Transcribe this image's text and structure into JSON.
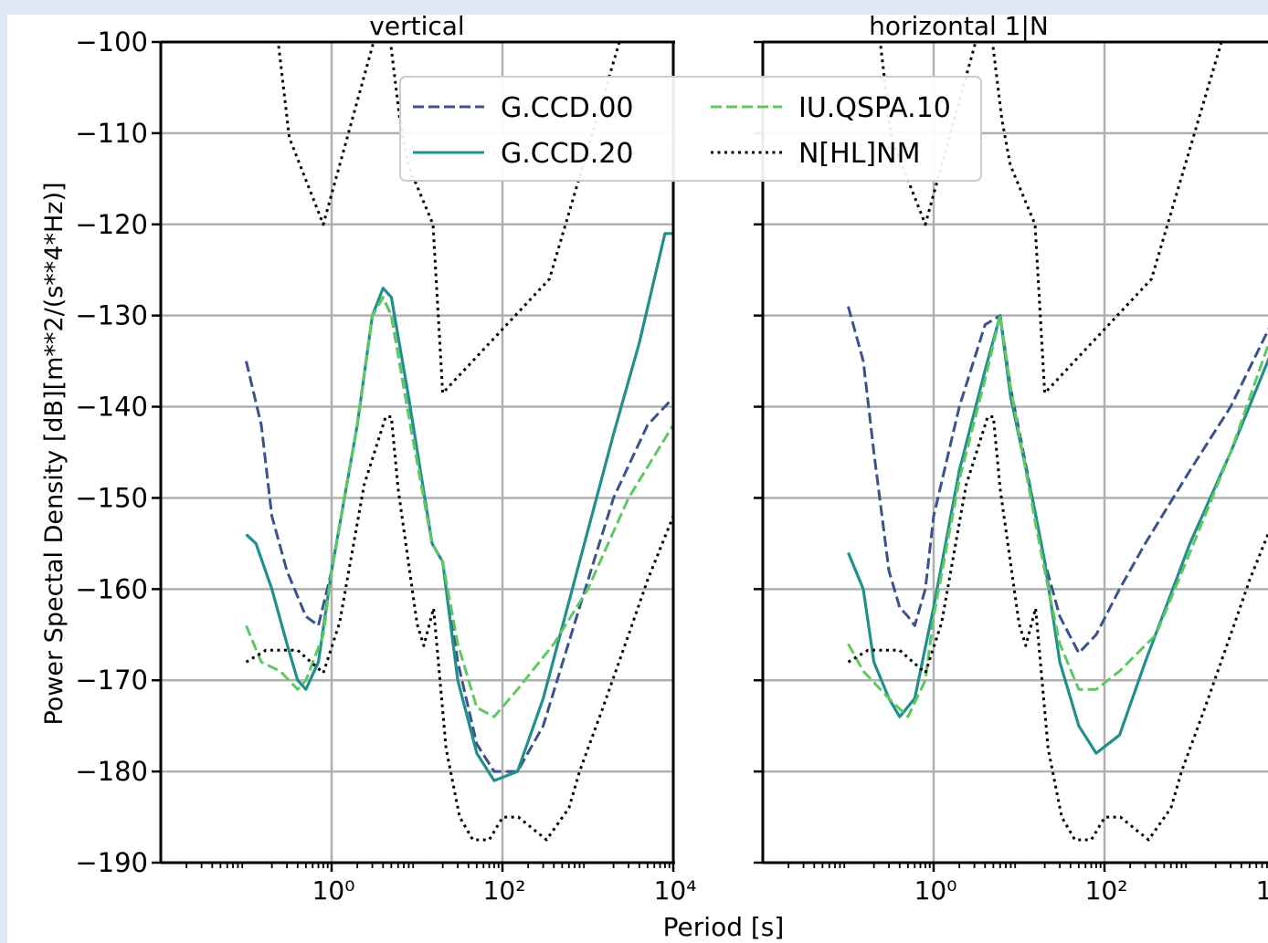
{
  "chart_data": {
    "type": "line",
    "ylabel": "Power Spectal Density [dB][m**2/(s**4*Hz)]",
    "xlabel": "Period [s]",
    "x_scale": "log",
    "xlim": [
      0.01,
      10000
    ],
    "ylim": [
      -190,
      -100
    ],
    "grid": true,
    "legend_location": "top-center",
    "yticks": [
      -100,
      -110,
      -120,
      -130,
      -140,
      -150,
      -160,
      -170,
      -180,
      -190
    ],
    "ytick_labels": [
      "−100",
      "−110",
      "−120",
      "−130",
      "−140",
      "−150",
      "−160",
      "−170",
      "−180",
      "−190"
    ],
    "xticks": [
      1,
      100,
      10000
    ],
    "xtick_labels": [
      "10⁰",
      "10²",
      "10⁴"
    ],
    "legend": [
      "G.CCD.00",
      "G.CCD.20",
      "IU.QSPA.10",
      "N[HL]NM"
    ],
    "colors": {
      "G.CCD.00": "#3b528b",
      "G.CCD.20": "#21908d",
      "IU.QSPA.10": "#5ec962",
      "N[HL]NM": "#000000"
    },
    "panels": [
      {
        "title": "vertical",
        "series": [
          {
            "name": "G.CCD.00",
            "style": "dashed",
            "points": [
              [
                0.1,
                -135
              ],
              [
                0.15,
                -142
              ],
              [
                0.2,
                -152
              ],
              [
                0.3,
                -158
              ],
              [
                0.5,
                -163
              ],
              [
                0.7,
                -164
              ],
              [
                1,
                -158
              ],
              [
                2,
                -142
              ],
              [
                3,
                -130
              ],
              [
                4,
                -128
              ],
              [
                5,
                -130
              ],
              [
                8,
                -141
              ],
              [
                15,
                -155
              ],
              [
                20,
                -157
              ],
              [
                30,
                -168
              ],
              [
                50,
                -177
              ],
              [
                80,
                -180
              ],
              [
                150,
                -180
              ],
              [
                300,
                -175
              ],
              [
                800,
                -162
              ],
              [
                2000,
                -150
              ],
              [
                5000,
                -142
              ],
              [
                10000,
                -139
              ]
            ]
          },
          {
            "name": "G.CCD.20",
            "style": "solid",
            "points": [
              [
                0.1,
                -154
              ],
              [
                0.13,
                -155
              ],
              [
                0.2,
                -160
              ],
              [
                0.3,
                -166
              ],
              [
                0.4,
                -170
              ],
              [
                0.5,
                -171
              ],
              [
                0.7,
                -168
              ],
              [
                1,
                -158
              ],
              [
                2,
                -142
              ],
              [
                3,
                -130
              ],
              [
                4,
                -127
              ],
              [
                5,
                -128
              ],
              [
                8,
                -139
              ],
              [
                15,
                -155
              ],
              [
                20,
                -157
              ],
              [
                30,
                -170
              ],
              [
                50,
                -178
              ],
              [
                80,
                -181
              ],
              [
                150,
                -180
              ],
              [
                300,
                -172
              ],
              [
                800,
                -157
              ],
              [
                2000,
                -143
              ],
              [
                4000,
                -133
              ],
              [
                8000,
                -121
              ],
              [
                10000,
                -121
              ]
            ]
          },
          {
            "name": "IU.QSPA.10",
            "style": "dashed",
            "points": [
              [
                0.1,
                -164
              ],
              [
                0.15,
                -168
              ],
              [
                0.25,
                -169
              ],
              [
                0.4,
                -171
              ],
              [
                0.5,
                -170
              ],
              [
                0.8,
                -165
              ],
              [
                1,
                -158
              ],
              [
                2,
                -142
              ],
              [
                3,
                -130
              ],
              [
                4,
                -128
              ],
              [
                5,
                -130
              ],
              [
                8,
                -141
              ],
              [
                15,
                -155
              ],
              [
                20,
                -157
              ],
              [
                30,
                -166
              ],
              [
                50,
                -173
              ],
              [
                80,
                -174
              ],
              [
                150,
                -171
              ],
              [
                400,
                -166
              ],
              [
                1000,
                -160
              ],
              [
                3000,
                -150
              ],
              [
                10000,
                -142
              ]
            ]
          },
          {
            "name": "NHNM",
            "style": "dotted",
            "points": [
              [
                0.1,
                -91.5
              ],
              [
                0.22,
                -97.4
              ],
              [
                0.32,
                -110.5
              ],
              [
                0.8,
                -120
              ],
              [
                3.8,
                -97
              ],
              [
                4.6,
                -98
              ],
              [
                6.3,
                -108.5
              ],
              [
                7.9,
                -113.5
              ],
              [
                15.4,
                -120
              ],
              [
                20,
                -138.5
              ],
              [
                354.8,
                -126
              ],
              [
                10000,
                -80
              ]
            ]
          },
          {
            "name": "NLNM",
            "style": "dotted",
            "points": [
              [
                0.1,
                -168
              ],
              [
                0.17,
                -166.7
              ],
              [
                0.4,
                -166.7
              ],
              [
                0.8,
                -169.2
              ],
              [
                1.24,
                -163.7
              ],
              [
                2.4,
                -148.6
              ],
              [
                4.3,
                -141.1
              ],
              [
                5,
                -141.1
              ],
              [
                6,
                -149
              ],
              [
                10,
                -163.8
              ],
              [
                12,
                -166.2
              ],
              [
                15.6,
                -162.1
              ],
              [
                21.9,
                -177.5
              ],
              [
                31.6,
                -185
              ],
              [
                45,
                -187.5
              ],
              [
                70,
                -187.5
              ],
              [
                101,
                -185
              ],
              [
                154,
                -185
              ],
              [
                328,
                -187.5
              ],
              [
                600,
                -184
              ],
              [
                800,
                -180
              ],
              [
                1500,
                -173
              ],
              [
                3000,
                -165
              ],
              [
                5000,
                -159
              ],
              [
                10000,
                -152
              ]
            ]
          }
        ]
      },
      {
        "title": "horizontal 1|N",
        "series": [
          {
            "name": "G.CCD.00",
            "style": "dashed",
            "points": [
              [
                0.1,
                -129
              ],
              [
                0.15,
                -135
              ],
              [
                0.2,
                -145
              ],
              [
                0.3,
                -158
              ],
              [
                0.4,
                -162
              ],
              [
                0.5,
                -163
              ],
              [
                0.6,
                -164
              ],
              [
                0.8,
                -160
              ],
              [
                1,
                -152
              ],
              [
                2,
                -140
              ],
              [
                4,
                -131
              ],
              [
                6,
                -130
              ],
              [
                8,
                -138
              ],
              [
                15,
                -151
              ],
              [
                20,
                -157
              ],
              [
                30,
                -163
              ],
              [
                50,
                -167
              ],
              [
                80,
                -165
              ],
              [
                150,
                -160
              ],
              [
                300,
                -155
              ],
              [
                1000,
                -147
              ],
              [
                3000,
                -140
              ],
              [
                10000,
                -130
              ]
            ]
          },
          {
            "name": "G.CCD.20",
            "style": "solid",
            "points": [
              [
                0.1,
                -156
              ],
              [
                0.15,
                -160
              ],
              [
                0.2,
                -168
              ],
              [
                0.3,
                -172
              ],
              [
                0.4,
                -174
              ],
              [
                0.6,
                -172
              ],
              [
                1,
                -162
              ],
              [
                2,
                -147
              ],
              [
                4,
                -136
              ],
              [
                6,
                -130
              ],
              [
                8,
                -139
              ],
              [
                15,
                -151
              ],
              [
                20,
                -157
              ],
              [
                30,
                -168
              ],
              [
                50,
                -175
              ],
              [
                80,
                -178
              ],
              [
                150,
                -176
              ],
              [
                300,
                -168
              ],
              [
                1000,
                -155
              ],
              [
                3000,
                -145
              ],
              [
                10000,
                -133
              ]
            ]
          },
          {
            "name": "IU.QSPA.10",
            "style": "dashed",
            "points": [
              [
                0.1,
                -166
              ],
              [
                0.15,
                -169
              ],
              [
                0.3,
                -172
              ],
              [
                0.5,
                -174
              ],
              [
                0.8,
                -170
              ],
              [
                1,
                -163
              ],
              [
                2,
                -148
              ],
              [
                4,
                -137
              ],
              [
                6,
                -130
              ],
              [
                8,
                -138
              ],
              [
                15,
                -152
              ],
              [
                20,
                -158
              ],
              [
                30,
                -166
              ],
              [
                50,
                -171
              ],
              [
                80,
                -171
              ],
              [
                150,
                -169
              ],
              [
                400,
                -165
              ],
              [
                1000,
                -156
              ],
              [
                3000,
                -145
              ],
              [
                10000,
                -131
              ]
            ]
          },
          {
            "name": "NHNM",
            "style": "dotted",
            "points": [
              [
                0.1,
                -91.5
              ],
              [
                0.22,
                -97.4
              ],
              [
                0.32,
                -110.5
              ],
              [
                0.8,
                -120
              ],
              [
                3.8,
                -97
              ],
              [
                4.6,
                -98
              ],
              [
                6.3,
                -108.5
              ],
              [
                7.9,
                -113.5
              ],
              [
                15.4,
                -120
              ],
              [
                20,
                -138.5
              ],
              [
                354.8,
                -126
              ],
              [
                10000,
                -80
              ]
            ]
          },
          {
            "name": "NLNM",
            "style": "dotted",
            "points": [
              [
                0.1,
                -168
              ],
              [
                0.17,
                -166.7
              ],
              [
                0.4,
                -166.7
              ],
              [
                0.8,
                -169.2
              ],
              [
                1.24,
                -163.7
              ],
              [
                2.4,
                -148.6
              ],
              [
                4.3,
                -141.1
              ],
              [
                5,
                -141.1
              ],
              [
                6,
                -149
              ],
              [
                10,
                -163.8
              ],
              [
                12,
                -166.2
              ],
              [
                15.6,
                -162.1
              ],
              [
                21.9,
                -177.5
              ],
              [
                31.6,
                -185
              ],
              [
                45,
                -187.5
              ],
              [
                70,
                -187.5
              ],
              [
                101,
                -185
              ],
              [
                154,
                -185
              ],
              [
                328,
                -187.5
              ],
              [
                600,
                -184
              ],
              [
                800,
                -180
              ],
              [
                1500,
                -173
              ],
              [
                3000,
                -165
              ],
              [
                5000,
                -159
              ],
              [
                10000,
                -152
              ]
            ]
          }
        ]
      }
    ]
  }
}
